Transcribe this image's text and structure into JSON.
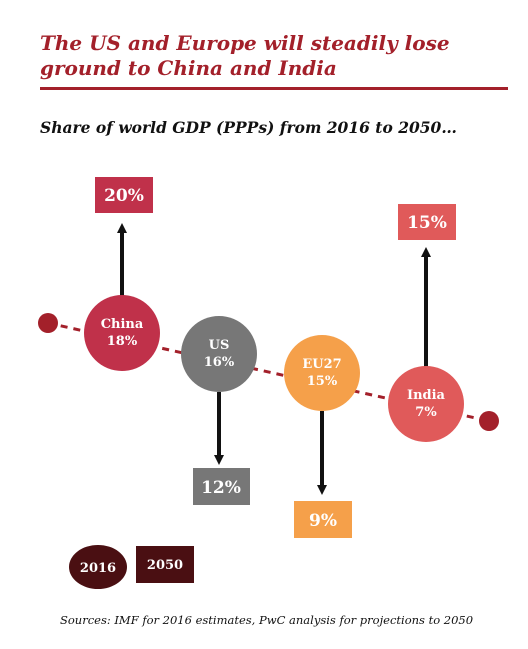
{
  "header": {
    "title": "The US and Europe will steadily lose ground to China and India",
    "subtitle": "Share of world GDP (PPPs) from 2016 to 2050…"
  },
  "colors": {
    "accent": "#a3202a",
    "china": "#c0314a",
    "us": "#777777",
    "eu27": "#f5a04a",
    "india": "#e05a5a",
    "endpoint": "#a3202a",
    "legend_2016": "#4a0f12",
    "legend_2050": "#4a0f12"
  },
  "regions": [
    {
      "name": "China",
      "share_2016": "18%",
      "share_2050": "20%"
    },
    {
      "name": "US",
      "share_2016": "16%",
      "share_2050": "12%"
    },
    {
      "name": "EU27",
      "share_2016": "15%",
      "share_2050": "9%"
    },
    {
      "name": "India",
      "share_2016": "7%",
      "share_2050": "15%"
    }
  ],
  "legend": {
    "label_2016": "2016",
    "label_2050": "2050"
  },
  "footer": {
    "source": "Sources: IMF for 2016 estimates, PwC analysis for projections to 2050"
  }
}
